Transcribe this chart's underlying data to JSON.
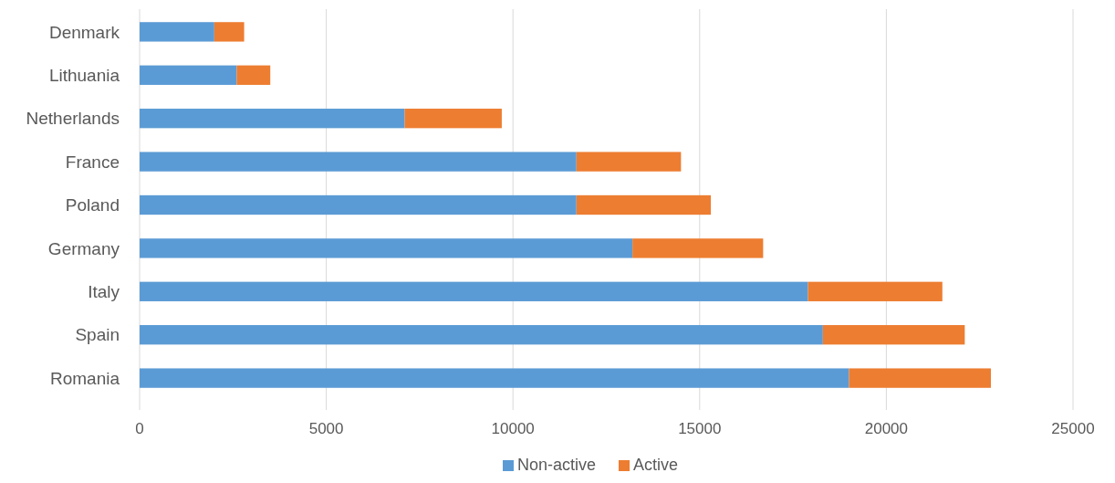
{
  "chart_data": {
    "type": "bar",
    "orientation": "horizontal",
    "stacked": true,
    "categories": [
      "Denmark",
      "Lithuania",
      "Netherlands",
      "France",
      "Poland",
      "Germany",
      "Italy",
      "Spain",
      "Romania"
    ],
    "series": [
      {
        "name": "Non-active",
        "color": "#5b9bd5",
        "values": [
          2000,
          2600,
          7100,
          11700,
          11700,
          13200,
          17900,
          18300,
          19000
        ]
      },
      {
        "name": "Active",
        "color": "#ed7d31",
        "values": [
          800,
          900,
          2600,
          2800,
          3600,
          3500,
          3600,
          3800,
          3800
        ]
      }
    ],
    "xlim": [
      0,
      25000
    ],
    "xticks": [
      0,
      5000,
      10000,
      15000,
      20000,
      25000
    ],
    "grid": "x",
    "legend": "bottom"
  }
}
